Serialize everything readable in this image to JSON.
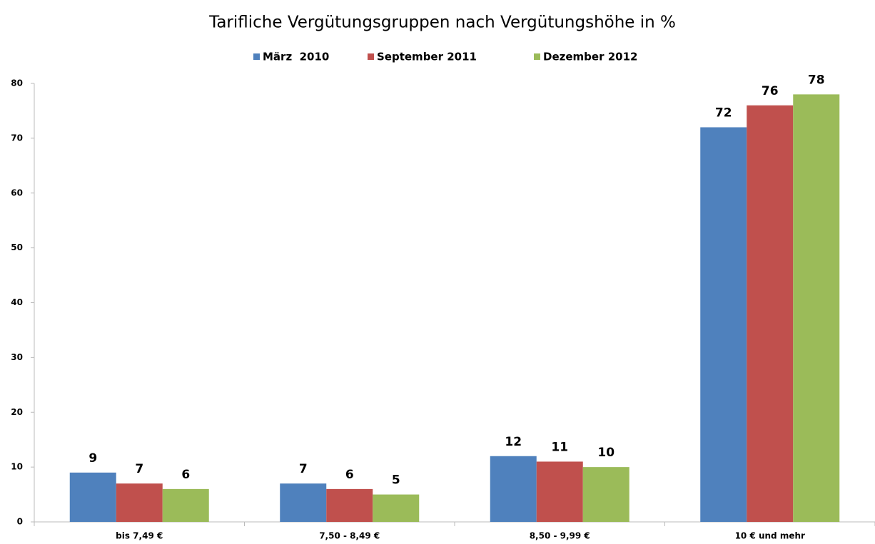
{
  "chart_data": {
    "type": "bar",
    "title": "Tarifliche Vergütungsgruppen nach Vergütungshöhe in %",
    "categories": [
      "bis 7,49 €",
      "7,50 - 8,49 €",
      "8,50 - 9,99 €",
      "10 € und mehr"
    ],
    "series": [
      {
        "name": "März  2010",
        "color": "#4f81bd",
        "values": [
          9,
          7,
          12,
          72
        ]
      },
      {
        "name": "September 2011",
        "color": "#c0504d",
        "values": [
          7,
          6,
          11,
          76
        ]
      },
      {
        "name": "Dezember 2012",
        "color": "#9bbb59",
        "values": [
          6,
          5,
          10,
          78
        ]
      }
    ],
    "ylim": [
      0,
      80
    ],
    "yticks": [
      0,
      10,
      20,
      30,
      40,
      50,
      60,
      70,
      80
    ],
    "grid": false
  }
}
